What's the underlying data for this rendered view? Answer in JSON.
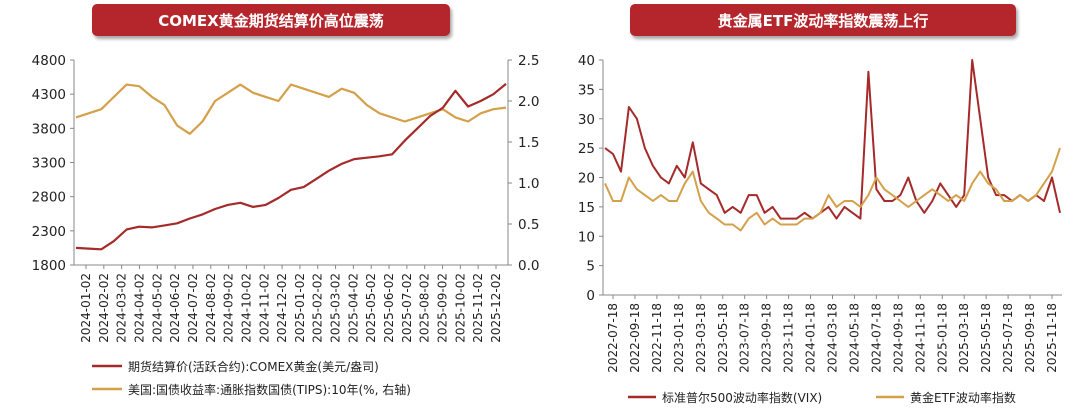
{
  "chart_data": [
    {
      "type": "line",
      "title": "COMEX黄金期货结算价高位震荡",
      "y_left": {
        "ticks": [
          1800,
          2300,
          2800,
          3300,
          3800,
          4300,
          4800
        ],
        "labels": [
          "1800",
          "2300",
          "2800",
          "3300",
          "3800",
          "4300",
          "4800"
        ],
        "range": [
          1800,
          4800
        ]
      },
      "y_right": {
        "ticks": [
          0.0,
          0.5,
          1.0,
          1.5,
          2.0,
          2.5
        ],
        "labels": [
          "0.0",
          "0.5",
          "1.0",
          "1.5",
          "2.0",
          "2.5"
        ],
        "range": [
          0,
          2.5
        ]
      },
      "x_labels": [
        "2024-01-02",
        "2024-02-02",
        "2024-03-02",
        "2024-04-02",
        "2024-05-02",
        "2024-06-02",
        "2024-07-02",
        "2024-08-02",
        "2024-09-02",
        "2024-10-02",
        "2024-11-02",
        "2024-12-02",
        "2025-01-02",
        "2025-02-02",
        "2025-03-02",
        "2025-04-02",
        "2025-05-02",
        "2025-06-02",
        "2025-07-02",
        "2025-08-02",
        "2025-09-02",
        "2025-10-02",
        "2025-11-02",
        "2025-12-02"
      ],
      "series": [
        {
          "name": "期货结算价(活跃合约):COMEX黄金(美元/盎司)",
          "axis": "left",
          "color": "#a52a2a",
          "values": [
            2050,
            2040,
            2030,
            2150,
            2320,
            2360,
            2350,
            2380,
            2410,
            2480,
            2540,
            2620,
            2680,
            2710,
            2650,
            2680,
            2780,
            2900,
            2940,
            3060,
            3180,
            3280,
            3350,
            3370,
            3390,
            3420,
            3620,
            3800,
            3980,
            4100,
            4350,
            4120,
            4200,
            4300,
            4450
          ]
        },
        {
          "name": "美国:国债收益率:通胀指数国债(TIPS):10年(%, 右轴)",
          "axis": "right",
          "color": "#d4a04a",
          "values": [
            1.8,
            1.85,
            1.9,
            2.05,
            2.2,
            2.18,
            2.05,
            1.95,
            1.7,
            1.6,
            1.75,
            2.0,
            2.1,
            2.2,
            2.1,
            2.05,
            2.0,
            2.2,
            2.15,
            2.1,
            2.05,
            2.15,
            2.1,
            1.95,
            1.85,
            1.8,
            1.75,
            1.8,
            1.85,
            1.9,
            1.8,
            1.75,
            1.85,
            1.9,
            1.92
          ]
        }
      ]
    },
    {
      "type": "line",
      "title": "贵金属ETF波动率指数震荡上行",
      "y_left": {
        "ticks": [
          0,
          5,
          10,
          15,
          20,
          25,
          30,
          35,
          40
        ],
        "labels": [
          "0",
          "5",
          "10",
          "15",
          "20",
          "25",
          "30",
          "35",
          "40"
        ],
        "range": [
          0,
          40
        ]
      },
      "x_labels": [
        "2022-07-18",
        "2022-09-18",
        "2022-11-18",
        "2023-01-18",
        "2023-03-18",
        "2023-05-18",
        "2023-07-18",
        "2023-09-18",
        "2023-11-18",
        "2024-01-18",
        "2024-03-18",
        "2024-05-18",
        "2024-07-18",
        "2024-09-18",
        "2024-11-18",
        "2025-01-18",
        "2025-03-18",
        "2025-05-18",
        "2025-07-18",
        "2025-09-18",
        "2025-11-18"
      ],
      "series": [
        {
          "name": "标准普尔500波动率指数(VIX)",
          "color": "#a52a2a",
          "values": [
            25,
            24,
            21,
            32,
            30,
            25,
            22,
            20,
            19,
            22,
            20,
            26,
            19,
            18,
            17,
            14,
            15,
            14,
            17,
            17,
            14,
            15,
            13,
            13,
            13,
            14,
            13,
            14,
            15,
            13,
            15,
            14,
            13,
            38,
            18,
            16,
            16,
            17,
            20,
            16,
            14,
            16,
            19,
            17,
            15,
            17,
            40,
            30,
            20,
            17,
            17,
            16,
            17,
            16,
            17,
            16,
            20,
            14
          ]
        },
        {
          "name": "黄金ETF波动率指数",
          "color": "#d4a04a",
          "values": [
            19,
            16,
            16,
            20,
            18,
            17,
            16,
            17,
            16,
            16,
            19,
            21,
            16,
            14,
            13,
            12,
            12,
            11,
            13,
            14,
            12,
            13,
            12,
            12,
            12,
            13,
            13,
            14,
            17,
            15,
            16,
            16,
            15,
            17,
            20,
            18,
            17,
            16,
            15,
            16,
            17,
            18,
            17,
            16,
            17,
            16,
            19,
            21,
            19,
            18,
            16,
            16,
            17,
            16,
            17,
            19,
            21,
            25
          ]
        }
      ]
    }
  ]
}
